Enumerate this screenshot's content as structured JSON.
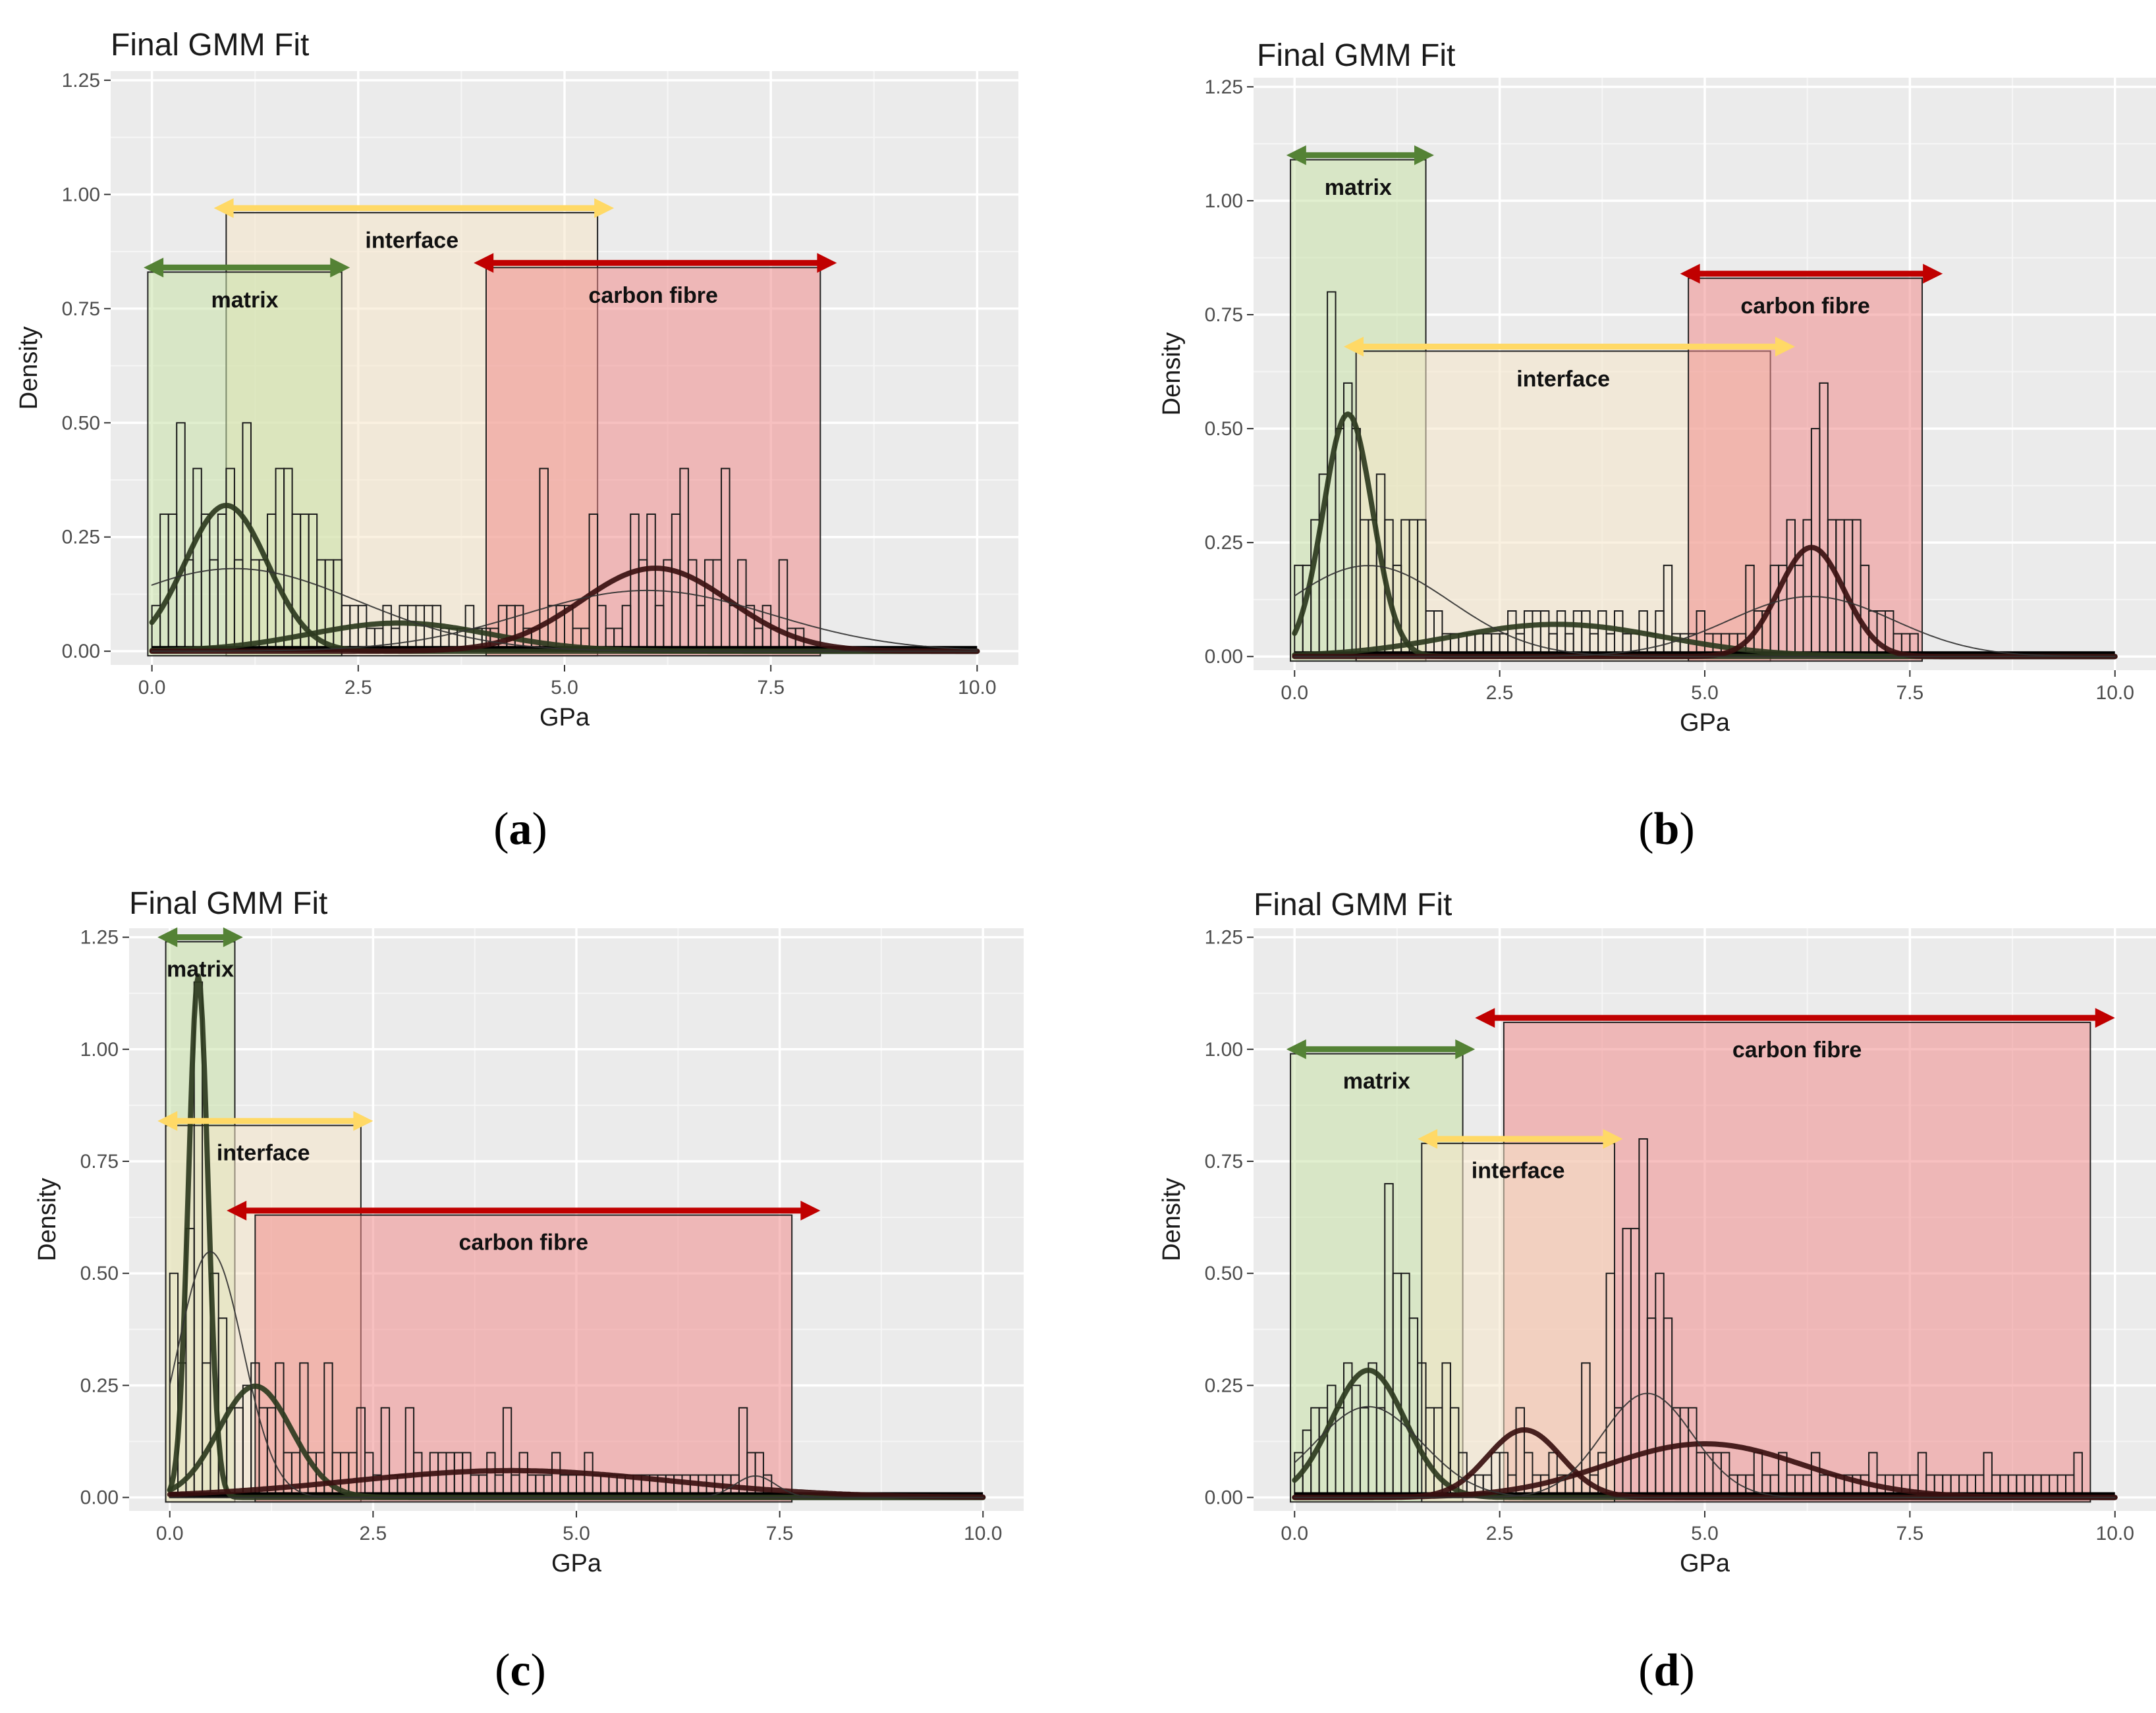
{
  "chart_data": [
    {
      "type": "histogram",
      "panel": "a",
      "title": "Final GMM Fit",
      "xlabel": "GPa",
      "ylabel": "Density",
      "caption": "(a)",
      "xlim": [
        -0.5,
        10.5
      ],
      "ylim": [
        -0.03,
        1.27
      ],
      "xticks": [
        "0.0",
        "2.5",
        "5.0",
        "7.5",
        "10.0"
      ],
      "yticks": [
        "0.00",
        "0.25",
        "0.50",
        "0.75",
        "1.00",
        "1.25"
      ],
      "grid": true,
      "regions": [
        {
          "label": "interface",
          "color": "#f5e6c8",
          "arrow_color": "#ffd966",
          "x0": 0.9,
          "x1": 5.4,
          "top": 0.96,
          "arrow_from": 0.75,
          "arrow_to": 5.6,
          "arrow_y": 0.97,
          "label_y": 0.9
        },
        {
          "label": "matrix",
          "color": "#c9e2a8",
          "arrow_color": "#548235",
          "x0": -0.05,
          "x1": 2.3,
          "top": 0.83,
          "arrow_from": -0.1,
          "arrow_to": 2.4,
          "arrow_y": 0.84,
          "label_y": 0.77
        },
        {
          "label": "carbon fibre",
          "color": "#f08c8c",
          "arrow_color": "#c00000",
          "x0": 4.05,
          "x1": 8.1,
          "top": 0.84,
          "arrow_from": 3.9,
          "arrow_to": 8.3,
          "arrow_y": 0.85,
          "label_y": 0.78
        }
      ],
      "histogram": {
        "bin_width": 0.1,
        "x": [
          0.05,
          0.15,
          0.25,
          0.35,
          0.45,
          0.55,
          0.65,
          0.75,
          0.85,
          0.95,
          1.05,
          1.15,
          1.25,
          1.35,
          1.45,
          1.55,
          1.65,
          1.75,
          1.85,
          1.95,
          2.05,
          2.15,
          2.25,
          2.35,
          2.45,
          2.55,
          2.65,
          2.75,
          2.85,
          2.95,
          3.05,
          3.15,
          3.25,
          3.35,
          3.45,
          3.55,
          3.65,
          3.75,
          3.85,
          3.95,
          4.05,
          4.15,
          4.25,
          4.35,
          4.45,
          4.55,
          4.65,
          4.75,
          4.85,
          4.95,
          5.05,
          5.15,
          5.25,
          5.35,
          5.45,
          5.55,
          5.65,
          5.75,
          5.85,
          5.95,
          6.05,
          6.15,
          6.25,
          6.35,
          6.45,
          6.55,
          6.65,
          6.75,
          6.85,
          6.95,
          7.05,
          7.15,
          7.25,
          7.35,
          7.45,
          7.55,
          7.65,
          7.75,
          7.85
        ],
        "density": [
          0.1,
          0.3,
          0.3,
          0.5,
          0.2,
          0.4,
          0.3,
          0.2,
          0.3,
          0.4,
          0.2,
          0.5,
          0.2,
          0.2,
          0.3,
          0.4,
          0.4,
          0.3,
          0.3,
          0.3,
          0.2,
          0.2,
          0.2,
          0.1,
          0.1,
          0.1,
          0.05,
          0.05,
          0.1,
          0.05,
          0.1,
          0.1,
          0.1,
          0.1,
          0.1,
          0.05,
          0.05,
          0.05,
          0.1,
          0.05,
          0.05,
          0.05,
          0.1,
          0.1,
          0.1,
          0.05,
          0.05,
          0.4,
          0.1,
          0.1,
          0.1,
          0.05,
          0.05,
          0.3,
          0.1,
          0.05,
          0.05,
          0.1,
          0.3,
          0.2,
          0.3,
          0.1,
          0.2,
          0.3,
          0.4,
          0.2,
          0.1,
          0.2,
          0.2,
          0.4,
          0.1,
          0.2,
          0.1,
          0.05,
          0.1,
          0.05,
          0.2,
          0.05,
          0.05
        ]
      },
      "components": [
        {
          "mean": 0.9,
          "sd": 0.5,
          "weight": 0.4,
          "width": 8,
          "color": "#2d3a1e"
        },
        {
          "mean": 3.0,
          "sd": 1.1,
          "weight": 0.17,
          "width": 8,
          "color": "#2d3a1e"
        },
        {
          "mean": 6.1,
          "sd": 0.9,
          "weight": 0.41,
          "width": 8,
          "color": "#3a1010"
        },
        {
          "mean": 1.0,
          "sd": 1.5,
          "weight": 0.68,
          "width": 2,
          "color": "#333333"
        },
        {
          "mean": 6.0,
          "sd": 1.5,
          "weight": 0.5,
          "width": 2,
          "color": "#333333"
        }
      ]
    },
    {
      "type": "histogram",
      "panel": "b",
      "title": "Final GMM Fit",
      "xlabel": "GPa",
      "ylabel": "Density",
      "caption": "(b)",
      "xlim": [
        -0.5,
        10.5
      ],
      "ylim": [
        -0.03,
        1.27
      ],
      "xticks": [
        "0.0",
        "2.5",
        "5.0",
        "7.5",
        "10.0"
      ],
      "yticks": [
        "0.00",
        "0.25",
        "0.50",
        "0.75",
        "1.00",
        "1.25"
      ],
      "grid": true,
      "regions": [
        {
          "label": "matrix",
          "color": "#c9e2a8",
          "arrow_color": "#548235",
          "x0": -0.05,
          "x1": 1.6,
          "top": 1.09,
          "arrow_from": -0.1,
          "arrow_to": 1.7,
          "arrow_y": 1.1,
          "label_y": 1.03
        },
        {
          "label": "interface",
          "color": "#f5e6c8",
          "arrow_color": "#ffd966",
          "x0": 0.75,
          "x1": 5.8,
          "top": 0.67,
          "arrow_from": 0.6,
          "arrow_to": 6.1,
          "arrow_y": 0.68,
          "label_y": 0.61
        },
        {
          "label": "carbon fibre",
          "color": "#f08c8c",
          "arrow_color": "#c00000",
          "x0": 4.8,
          "x1": 7.65,
          "top": 0.83,
          "arrow_from": 4.7,
          "arrow_to": 7.9,
          "arrow_y": 0.84,
          "label_y": 0.77
        }
      ],
      "histogram": {
        "bin_width": 0.1,
        "x": [
          0.05,
          0.15,
          0.25,
          0.35,
          0.45,
          0.55,
          0.65,
          0.75,
          0.85,
          0.95,
          1.05,
          1.15,
          1.25,
          1.35,
          1.45,
          1.55,
          1.65,
          1.75,
          1.85,
          1.95,
          2.05,
          2.15,
          2.25,
          2.35,
          2.45,
          2.55,
          2.65,
          2.75,
          2.85,
          2.95,
          3.05,
          3.15,
          3.25,
          3.35,
          3.45,
          3.55,
          3.65,
          3.75,
          3.85,
          3.95,
          4.05,
          4.15,
          4.25,
          4.35,
          4.45,
          4.55,
          4.65,
          4.75,
          4.85,
          4.95,
          5.05,
          5.15,
          5.25,
          5.35,
          5.45,
          5.55,
          5.65,
          5.75,
          5.85,
          5.95,
          6.05,
          6.15,
          6.25,
          6.35,
          6.45,
          6.55,
          6.65,
          6.75,
          6.85,
          6.95,
          7.05,
          7.15,
          7.25,
          7.35,
          7.45,
          7.55
        ],
        "density": [
          0.2,
          0.2,
          0.3,
          0.4,
          0.8,
          0.5,
          0.6,
          0.5,
          0.3,
          0.3,
          0.4,
          0.3,
          0.2,
          0.3,
          0.3,
          0.3,
          0.1,
          0.1,
          0.05,
          0.05,
          0.05,
          0.05,
          0.05,
          0.05,
          0.05,
          0.05,
          0.1,
          0.05,
          0.1,
          0.1,
          0.1,
          0.05,
          0.1,
          0.05,
          0.1,
          0.1,
          0.05,
          0.1,
          0.05,
          0.1,
          0.05,
          0.05,
          0.1,
          0.05,
          0.1,
          0.2,
          0.05,
          0.05,
          0.05,
          0.1,
          0.05,
          0.05,
          0.05,
          0.05,
          0.05,
          0.2,
          0.1,
          0.1,
          0.2,
          0.2,
          0.3,
          0.2,
          0.3,
          0.5,
          0.6,
          0.3,
          0.3,
          0.3,
          0.3,
          0.2,
          0.1,
          0.1,
          0.1,
          0.05,
          0.05,
          0.05
        ]
      },
      "components": [
        {
          "mean": 0.65,
          "sd": 0.3,
          "weight": 0.4,
          "width": 8,
          "color": "#2d3a1e"
        },
        {
          "mean": 3.2,
          "sd": 1.3,
          "weight": 0.23,
          "width": 8,
          "color": "#2d3a1e"
        },
        {
          "mean": 6.3,
          "sd": 0.4,
          "weight": 0.24,
          "width": 8,
          "color": "#3a1010"
        },
        {
          "mean": 0.9,
          "sd": 1.0,
          "weight": 0.5,
          "width": 2,
          "color": "#333333"
        },
        {
          "mean": 6.3,
          "sd": 1.0,
          "weight": 0.33,
          "width": 2,
          "color": "#333333"
        }
      ]
    },
    {
      "type": "histogram",
      "panel": "c",
      "title": "Final GMM Fit",
      "xlabel": "GPa",
      "ylabel": "Density",
      "caption": "(c)",
      "xlim": [
        -0.5,
        10.5
      ],
      "ylim": [
        -0.03,
        1.27
      ],
      "xticks": [
        "0.0",
        "2.5",
        "5.0",
        "7.5",
        "10.0"
      ],
      "yticks": [
        "0.00",
        "0.25",
        "0.50",
        "0.75",
        "1.00",
        "1.25"
      ],
      "grid": true,
      "regions": [
        {
          "label": "matrix",
          "color": "#c9e2a8",
          "arrow_color": "#548235",
          "x0": -0.05,
          "x1": 0.8,
          "top": 1.24,
          "arrow_from": -0.15,
          "arrow_to": 0.9,
          "arrow_y": 1.25,
          "label_y": 1.18
        },
        {
          "label": "interface",
          "color": "#f5e6c8",
          "arrow_color": "#ffd966",
          "x0": -0.05,
          "x1": 2.35,
          "top": 0.83,
          "arrow_from": -0.15,
          "arrow_to": 2.5,
          "arrow_y": 0.84,
          "label_y": 0.77
        },
        {
          "label": "carbon fibre",
          "color": "#f08c8c",
          "arrow_color": "#c00000",
          "x0": 1.05,
          "x1": 7.65,
          "top": 0.63,
          "arrow_from": 0.7,
          "arrow_to": 8.0,
          "arrow_y": 0.64,
          "label_y": 0.57
        }
      ],
      "histogram": {
        "bin_width": 0.1,
        "x": [
          0.05,
          0.15,
          0.25,
          0.35,
          0.45,
          0.55,
          0.65,
          0.75,
          0.85,
          0.95,
          1.05,
          1.15,
          1.25,
          1.35,
          1.45,
          1.55,
          1.65,
          1.75,
          1.85,
          1.95,
          2.05,
          2.15,
          2.25,
          2.35,
          2.45,
          2.55,
          2.65,
          2.75,
          2.85,
          2.95,
          3.05,
          3.15,
          3.25,
          3.35,
          3.45,
          3.55,
          3.65,
          3.75,
          3.85,
          3.95,
          4.05,
          4.15,
          4.25,
          4.35,
          4.45,
          4.55,
          4.65,
          4.75,
          4.85,
          4.95,
          5.05,
          5.15,
          5.25,
          5.35,
          5.45,
          5.55,
          5.65,
          5.75,
          5.85,
          5.95,
          6.05,
          6.15,
          6.25,
          6.35,
          6.45,
          6.55,
          6.65,
          6.75,
          6.85,
          6.95,
          7.05,
          7.15,
          7.25,
          7.35
        ],
        "density": [
          0.5,
          0.3,
          0.6,
          1.15,
          0.3,
          0.5,
          0.4,
          0.2,
          0.2,
          0.25,
          0.3,
          0.2,
          0.2,
          0.3,
          0.1,
          0.1,
          0.3,
          0.1,
          0.1,
          0.3,
          0.1,
          0.1,
          0.1,
          0.2,
          0.1,
          0.05,
          0.2,
          0.05,
          0.05,
          0.2,
          0.1,
          0.05,
          0.1,
          0.1,
          0.1,
          0.1,
          0.1,
          0.05,
          0.05,
          0.1,
          0.05,
          0.2,
          0.05,
          0.1,
          0.05,
          0.05,
          0.05,
          0.1,
          0.05,
          0.05,
          0.05,
          0.1,
          0.05,
          0.05,
          0.05,
          0.05,
          0.05,
          0.05,
          0.05,
          0.05,
          0.05,
          0.05,
          0.05,
          0.05,
          0.05,
          0.05,
          0.05,
          0.05,
          0.05,
          0.05,
          0.2,
          0.1,
          0.1,
          0.05
        ]
      },
      "components": [
        {
          "mean": 0.35,
          "sd": 0.12,
          "weight": 0.35,
          "width": 8,
          "color": "#2d3a1e"
        },
        {
          "mean": 1.05,
          "sd": 0.45,
          "weight": 0.28,
          "width": 8,
          "color": "#2d3a1e"
        },
        {
          "mean": 4.2,
          "sd": 2.0,
          "weight": 0.3,
          "width": 8,
          "color": "#3a1010"
        },
        {
          "mean": 0.5,
          "sd": 0.4,
          "weight": 0.55,
          "width": 2,
          "color": "#333333"
        },
        {
          "mean": 7.2,
          "sd": 0.25,
          "weight": 0.03,
          "width": 2,
          "color": "#333333"
        }
      ]
    },
    {
      "type": "histogram",
      "panel": "d",
      "title": "Final GMM Fit",
      "xlabel": "GPa",
      "ylabel": "Density",
      "caption": "(d)",
      "xlim": [
        -0.5,
        10.5
      ],
      "ylim": [
        -0.03,
        1.27
      ],
      "xticks": [
        "0.0",
        "2.5",
        "5.0",
        "7.5",
        "10.0"
      ],
      "yticks": [
        "0.00",
        "0.25",
        "0.50",
        "0.75",
        "1.00",
        "1.25"
      ],
      "grid": true,
      "regions": [
        {
          "label": "carbon fibre",
          "color": "#f08c8c",
          "arrow_color": "#c00000",
          "x0": 2.55,
          "x1": 9.7,
          "top": 1.06,
          "arrow_from": 2.2,
          "arrow_to": 10.0,
          "arrow_y": 1.07,
          "label_y": 1.0
        },
        {
          "label": "matrix",
          "color": "#c9e2a8",
          "arrow_color": "#548235",
          "x0": -0.05,
          "x1": 2.05,
          "top": 0.99,
          "arrow_from": -0.1,
          "arrow_to": 2.2,
          "arrow_y": 1.0,
          "label_y": 0.93
        },
        {
          "label": "interface",
          "color": "#f5e6c8",
          "arrow_color": "#ffd966",
          "x0": 1.55,
          "x1": 3.9,
          "top": 0.79,
          "arrow_from": 1.5,
          "arrow_to": 4.0,
          "arrow_y": 0.8,
          "label_y": 0.73
        }
      ],
      "histogram": {
        "bin_width": 0.1,
        "x": [
          0.05,
          0.15,
          0.25,
          0.35,
          0.45,
          0.55,
          0.65,
          0.75,
          0.85,
          0.95,
          1.05,
          1.15,
          1.25,
          1.35,
          1.45,
          1.55,
          1.65,
          1.75,
          1.85,
          1.95,
          2.05,
          2.15,
          2.25,
          2.35,
          2.45,
          2.55,
          2.65,
          2.75,
          2.85,
          2.95,
          3.05,
          3.15,
          3.25,
          3.35,
          3.45,
          3.55,
          3.65,
          3.75,
          3.85,
          3.95,
          4.05,
          4.15,
          4.25,
          4.35,
          4.45,
          4.55,
          4.65,
          4.75,
          4.85,
          4.95,
          5.05,
          5.15,
          5.25,
          5.35,
          5.45,
          5.55,
          5.65,
          5.75,
          5.85,
          5.95,
          6.05,
          6.15,
          6.25,
          6.35,
          6.45,
          6.55,
          6.65,
          6.75,
          6.85,
          6.95,
          7.05,
          7.15,
          7.25,
          7.35,
          7.45,
          7.55,
          7.65,
          7.75,
          7.85,
          7.95,
          8.05,
          8.15,
          8.25,
          8.35,
          8.45,
          8.55,
          8.65,
          8.75,
          8.85,
          8.95,
          9.05,
          9.15,
          9.25,
          9.35,
          9.45,
          9.55
        ],
        "density": [
          0.1,
          0.15,
          0.2,
          0.2,
          0.25,
          0.2,
          0.3,
          0.25,
          0.2,
          0.3,
          0.2,
          0.7,
          0.5,
          0.5,
          0.4,
          0.3,
          0.2,
          0.2,
          0.3,
          0.2,
          0.1,
          0.05,
          0.05,
          0.05,
          0.1,
          0.1,
          0.05,
          0.2,
          0.1,
          0.05,
          0.05,
          0.1,
          0.05,
          0.05,
          0.05,
          0.3,
          0.05,
          0.1,
          0.5,
          0.2,
          0.6,
          0.6,
          0.8,
          0.4,
          0.5,
          0.4,
          0.2,
          0.2,
          0.2,
          0.1,
          0.1,
          0.1,
          0.1,
          0.05,
          0.05,
          0.05,
          0.1,
          0.05,
          0.05,
          0.1,
          0.05,
          0.05,
          0.05,
          0.1,
          0.05,
          0.05,
          0.05,
          0.05,
          0.05,
          0.05,
          0.1,
          0.05,
          0.05,
          0.05,
          0.05,
          0.05,
          0.1,
          0.05,
          0.05,
          0.05,
          0.05,
          0.05,
          0.05,
          0.05,
          0.1,
          0.05,
          0.05,
          0.05,
          0.05,
          0.05,
          0.05,
          0.05,
          0.05,
          0.05,
          0.05,
          0.1
        ]
      },
      "components": [
        {
          "mean": 0.9,
          "sd": 0.45,
          "weight": 0.32,
          "width": 8,
          "color": "#2d3a1e"
        },
        {
          "mean": 2.8,
          "sd": 0.45,
          "weight": 0.17,
          "width": 8,
          "color": "#3a1010"
        },
        {
          "mean": 5.0,
          "sd": 1.2,
          "weight": 0.36,
          "width": 8,
          "color": "#3a1010"
        },
        {
          "mean": 0.9,
          "sd": 0.65,
          "weight": 0.33,
          "width": 2,
          "color": "#333333"
        },
        {
          "mean": 4.3,
          "sd": 0.55,
          "weight": 0.32,
          "width": 2,
          "color": "#333333"
        }
      ]
    }
  ]
}
